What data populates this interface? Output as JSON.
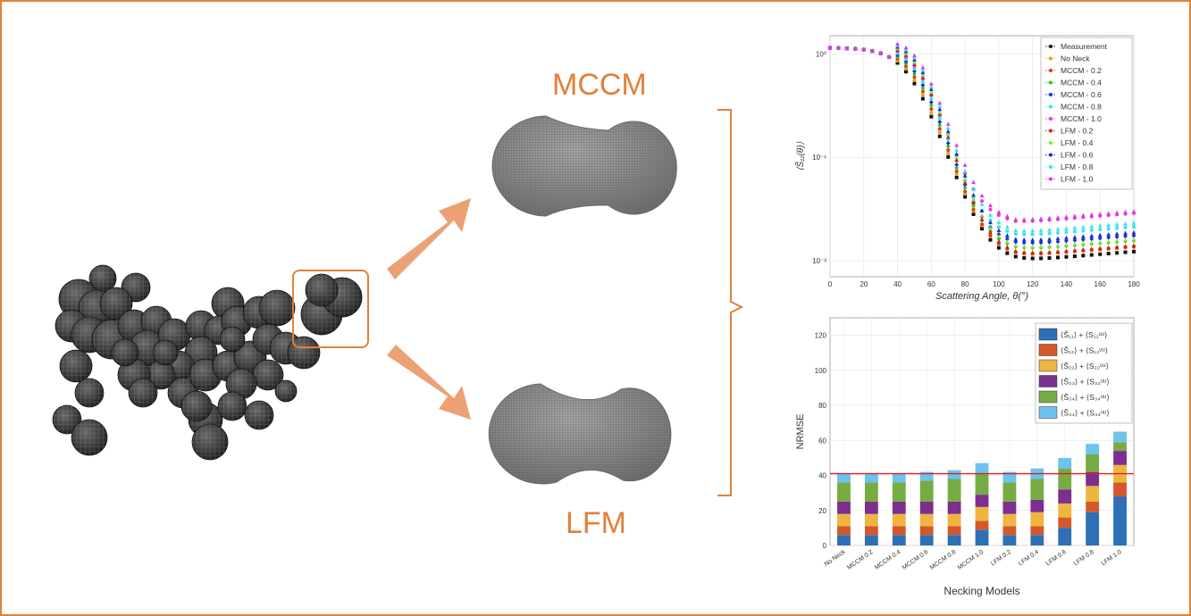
{
  "labels": {
    "mccm": "MCCM",
    "lfm": "LFM"
  },
  "colors": {
    "accent": "#e0813a",
    "arrow": "#eba174",
    "spheres": "#3a3a3a",
    "dimers": "#8c8c8c",
    "threshold": "#e0201b"
  },
  "chart_data": [
    {
      "type": "scatter",
      "ylabel": "⟨S̃₁₁(θ)⟩",
      "xlabel": "Scattering Angle, θ(°)",
      "yscale": "log",
      "xlim": [
        0,
        180
      ],
      "ylim": [
        0.007,
        1.5
      ],
      "xticks": [
        0,
        20,
        40,
        60,
        80,
        100,
        120,
        140,
        160,
        180
      ],
      "yticks": [
        {
          "v": 1,
          "label": "10⁰"
        },
        {
          "v": 0.1,
          "label": "10⁻¹"
        },
        {
          "v": 0.01,
          "label": "10⁻²"
        }
      ],
      "grid": true,
      "legend_position": "top-right",
      "x": [
        0,
        5,
        10,
        15,
        20,
        25,
        30,
        35,
        40,
        45,
        50,
        55,
        60,
        65,
        70,
        75,
        80,
        85,
        90,
        95,
        100,
        105,
        110,
        115,
        120,
        125,
        130,
        135,
        140,
        145,
        150,
        155,
        160,
        165,
        170,
        175,
        180
      ],
      "series": [
        {
          "name": "Measurement",
          "color": "#111111",
          "marker": "square",
          "tail": 0.0098
        },
        {
          "name": "No Neck",
          "color": "#e8a317",
          "marker": "circle",
          "tail": 0.0108
        },
        {
          "name": "MCCM - 0.2",
          "color": "#e03a1e",
          "marker": "circle",
          "tail": 0.011
        },
        {
          "name": "MCCM - 0.4",
          "color": "#35c21e",
          "marker": "diamond",
          "tail": 0.0125
        },
        {
          "name": "MCCM - 0.6",
          "color": "#1a2fd6",
          "marker": "diamond",
          "tail": 0.014
        },
        {
          "name": "MCCM - 0.8",
          "color": "#33e5ea",
          "marker": "circle",
          "tail": 0.017
        },
        {
          "name": "MCCM - 1.0",
          "color": "#e636e6",
          "marker": "circle",
          "tail": 0.023
        },
        {
          "name": "LFM - 0.2",
          "color": "#d9201b",
          "marker": "triangle",
          "tail": 0.0112
        },
        {
          "name": "LFM - 0.4",
          "color": "#7de838",
          "marker": "triangle",
          "tail": 0.0128
        },
        {
          "name": "LFM - 0.6",
          "color": "#1a2fd6",
          "marker": "triangle",
          "tail": 0.015
        },
        {
          "name": "LFM - 0.8",
          "color": "#33e5ea",
          "marker": "triangle",
          "tail": 0.0185
        },
        {
          "name": "LFM - 1.0",
          "color": "#e636e6",
          "marker": "triangle",
          "tail": 0.024
        }
      ]
    },
    {
      "type": "bar",
      "stacked": true,
      "ylabel": "NRMSE",
      "xlabel": "Necking Models",
      "ylim": [
        0,
        130
      ],
      "yticks": [
        0,
        20,
        40,
        60,
        80,
        100,
        120
      ],
      "threshold": 41,
      "legend_position": "top-right",
      "categories": [
        "No Neck",
        "MCCM 0.2",
        "MCCM 0.4",
        "MCCM 0.6",
        "MCCM 0.8",
        "MCCM 1.0",
        "LFM 0.2",
        "LFM 0.4",
        "LFM 0.6",
        "LFM 0.8",
        "LFM 1.0"
      ],
      "series": [
        {
          "name": "⟨S̃₁₁⟩ + ⟨S₁₁ᵘᵘ⟩",
          "color": "#2e6fb5",
          "values": [
            6,
            6,
            6,
            6,
            6,
            9,
            6,
            6,
            10,
            19,
            28
          ]
        },
        {
          "name": "⟨S̃₁₂⟩ + ⟨S₁₂ᵘᵘ⟩",
          "color": "#d4582a",
          "values": [
            5,
            5,
            5,
            5,
            5,
            5,
            5,
            5,
            6,
            6,
            8
          ]
        },
        {
          "name": "⟨S̃₂₂⟩ + ⟨S₂₂ᵘᵘ⟩",
          "color": "#eeb540",
          "values": [
            7,
            7,
            7,
            7,
            7,
            8,
            7,
            8,
            8,
            9,
            10
          ]
        },
        {
          "name": "⟨S̃₃₃⟩ + ⟨S₃₃ᵘᵘ⟩",
          "color": "#7b2f8e",
          "values": [
            7,
            7,
            7,
            7,
            7,
            7,
            7,
            7,
            8,
            8,
            8
          ]
        },
        {
          "name": "⟨S̃₃₄⟩ + ⟨S₃₄ᵘᵘ⟩",
          "color": "#77ab43",
          "values": [
            11,
            11,
            11,
            12,
            13,
            12,
            11,
            12,
            12,
            10,
            5
          ]
        },
        {
          "name": "⟨S̃₄₄⟩ + ⟨S₄₄ᵘᵘ⟩",
          "color": "#6cc3ef",
          "values": [
            5,
            5,
            5,
            5,
            5,
            6,
            6,
            6,
            6,
            6,
            6
          ]
        }
      ]
    }
  ]
}
